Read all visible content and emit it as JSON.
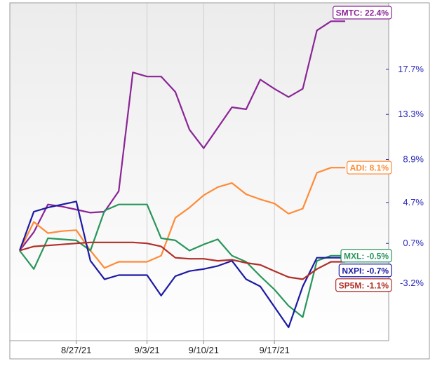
{
  "chart_data": {
    "type": "line",
    "x": [
      "8/23/21",
      "8/24/21",
      "8/25/21",
      "8/26/21",
      "8/27/21",
      "8/30/21",
      "8/31/21",
      "9/1/21",
      "9/2/21",
      "9/3/21",
      "9/7/21",
      "9/8/21",
      "9/9/21",
      "9/10/21",
      "9/13/21",
      "9/14/21",
      "9/15/21",
      "9/16/21",
      "9/17/21",
      "9/20/21",
      "9/21/21",
      "9/22/21",
      "9/23/21",
      "9/24/21"
    ],
    "x_tick_labels": [
      "8/27/21",
      "9/3/21",
      "9/10/21",
      "9/17/21"
    ],
    "y_tick_labels": [
      "17.7%",
      "13.3%",
      "8.9%",
      "4.7%",
      "0.7%",
      "-3.2%"
    ],
    "y_ticks": [
      17.7,
      13.3,
      8.9,
      4.7,
      0.7,
      -3.2
    ],
    "ylim": [
      -8.8,
      24.2
    ],
    "grid": {
      "vertical": true,
      "horizontal": false
    },
    "series": [
      {
        "name": "SMTC",
        "end_label": "SMTC: 22.4%",
        "color": "#8a2596",
        "values": [
          0.0,
          1.8,
          4.5,
          4.3,
          4.0,
          3.7,
          3.8,
          5.8,
          17.4,
          17.0,
          17.0,
          15.5,
          11.8,
          10.0,
          12.0,
          14.0,
          13.8,
          16.7,
          15.8,
          15.0,
          15.8,
          21.5,
          22.4,
          22.4
        ]
      },
      {
        "name": "ADI",
        "end_label": "ADI: 8.1%",
        "color": "#ff8a35",
        "values": [
          0.0,
          2.8,
          1.7,
          1.9,
          2.0,
          0.0,
          -1.7,
          -1.1,
          -1.1,
          -1.1,
          -0.5,
          3.2,
          4.2,
          5.4,
          6.2,
          6.6,
          5.5,
          5.0,
          4.6,
          3.6,
          4.1,
          7.6,
          8.1,
          8.1
        ]
      },
      {
        "name": "MXL",
        "end_label": "MXL: -0.5%",
        "color": "#27965a",
        "values": [
          0.0,
          -1.8,
          1.2,
          1.1,
          1.0,
          0.0,
          3.9,
          4.5,
          4.5,
          4.5,
          1.2,
          1.0,
          0.0,
          0.6,
          1.1,
          -0.5,
          -1.1,
          -2.5,
          -3.8,
          -5.4,
          -6.5,
          -1.0,
          -0.5,
          -0.5
        ]
      },
      {
        "name": "NXPI",
        "end_label": "NXPI: -0.7%",
        "color": "#1c1aa4",
        "values": [
          0.0,
          3.8,
          4.2,
          4.5,
          4.8,
          -1.0,
          -2.8,
          -2.4,
          -2.4,
          -2.4,
          -4.4,
          -2.5,
          -2.0,
          -1.8,
          -1.5,
          -1.0,
          -2.8,
          -3.5,
          -5.5,
          -7.5,
          -3.5,
          -0.7,
          -0.7,
          -0.7
        ]
      },
      {
        "name": "SP5M",
        "end_label": "SP5M: -1.1%",
        "color": "#b02f28",
        "values": [
          0.0,
          0.4,
          0.5,
          0.6,
          0.7,
          0.8,
          0.8,
          0.8,
          0.8,
          0.7,
          0.4,
          -0.7,
          -0.8,
          -0.8,
          -1.0,
          -0.9,
          -1.2,
          -1.4,
          -2.0,
          -2.6,
          -2.8,
          -1.8,
          -1.1,
          -1.1
        ]
      }
    ]
  }
}
